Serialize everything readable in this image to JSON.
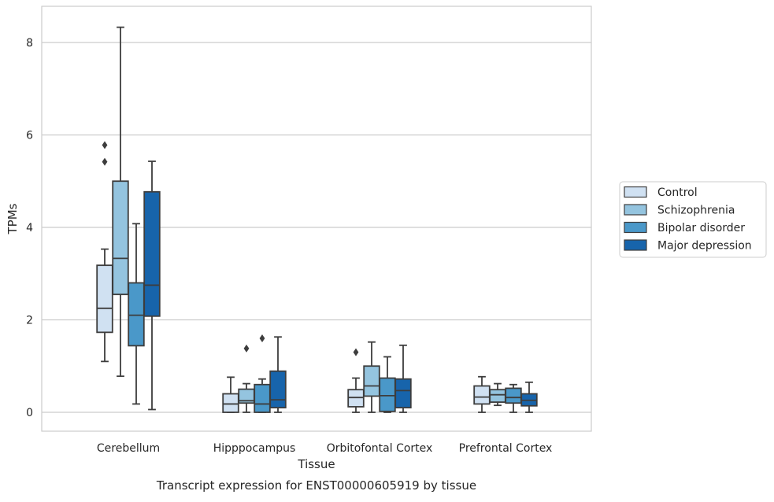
{
  "chart_data": {
    "type": "boxplot",
    "title": "",
    "caption": "Transcript expression for ENST00000605919 by tissue",
    "xlabel": "Tissue",
    "ylabel": "TPMs",
    "ylim": [
      -0.4,
      8.75
    ],
    "yticks": [
      0,
      2,
      4,
      6,
      8
    ],
    "grid": "horizontal",
    "legend_position": "right",
    "categories": [
      "Cerebellum",
      "Hipppocampus",
      "Orbitofontal Cortex",
      "Prefrontal Cortex"
    ],
    "series": [
      {
        "name": "Control",
        "color": "#d0e1f2",
        "boxes": [
          {
            "whislo": 1.1,
            "q1": 1.73,
            "med": 2.25,
            "q3": 3.18,
            "whishi": 3.53,
            "fliers": [
              5.78,
              5.42
            ]
          },
          {
            "whislo": 0.0,
            "q1": 0.0,
            "med": 0.18,
            "q3": 0.4,
            "whishi": 0.76,
            "fliers": []
          },
          {
            "whislo": 0.0,
            "q1": 0.12,
            "med": 0.32,
            "q3": 0.49,
            "whishi": 0.74,
            "fliers": [
              1.3
            ]
          },
          {
            "whislo": 0.0,
            "q1": 0.18,
            "med": 0.33,
            "q3": 0.57,
            "whishi": 0.77,
            "fliers": []
          }
        ]
      },
      {
        "name": "Schizophrenia",
        "color": "#94c4df",
        "boxes": [
          {
            "whislo": 0.78,
            "q1": 2.55,
            "med": 3.33,
            "q3": 5.0,
            "whishi": 8.33,
            "fliers": []
          },
          {
            "whislo": 0.0,
            "q1": 0.2,
            "med": 0.25,
            "q3": 0.5,
            "whishi": 0.62,
            "fliers": [
              1.38
            ]
          },
          {
            "whislo": 0.0,
            "q1": 0.35,
            "med": 0.57,
            "q3": 1.0,
            "whishi": 1.52,
            "fliers": []
          },
          {
            "whislo": 0.15,
            "q1": 0.22,
            "med": 0.38,
            "q3": 0.49,
            "whishi": 0.62,
            "fliers": []
          }
        ]
      },
      {
        "name": "Bipolar disorder",
        "color": "#4a98c9",
        "boxes": [
          {
            "whislo": 0.18,
            "q1": 1.44,
            "med": 2.1,
            "q3": 2.8,
            "whishi": 4.08,
            "fliers": []
          },
          {
            "whislo": 0.0,
            "q1": 0.0,
            "med": 0.18,
            "q3": 0.6,
            "whishi": 0.72,
            "fliers": [
              1.6
            ]
          },
          {
            "whislo": 0.0,
            "q1": 0.02,
            "med": 0.36,
            "q3": 0.74,
            "whishi": 1.2,
            "fliers": []
          },
          {
            "whislo": 0.0,
            "q1": 0.2,
            "med": 0.32,
            "q3": 0.52,
            "whishi": 0.6,
            "fliers": []
          }
        ]
      },
      {
        "name": "Major depression",
        "color": "#1764ab",
        "boxes": [
          {
            "whislo": 0.06,
            "q1": 2.08,
            "med": 2.75,
            "q3": 4.77,
            "whishi": 5.43,
            "fliers": []
          },
          {
            "whislo": 0.0,
            "q1": 0.1,
            "med": 0.27,
            "q3": 0.89,
            "whishi": 1.63,
            "fliers": []
          },
          {
            "whislo": 0.0,
            "q1": 0.1,
            "med": 0.47,
            "q3": 0.72,
            "whishi": 1.45,
            "fliers": []
          },
          {
            "whislo": 0.0,
            "q1": 0.14,
            "med": 0.26,
            "q3": 0.4,
            "whishi": 0.65,
            "fliers": []
          }
        ]
      }
    ]
  }
}
